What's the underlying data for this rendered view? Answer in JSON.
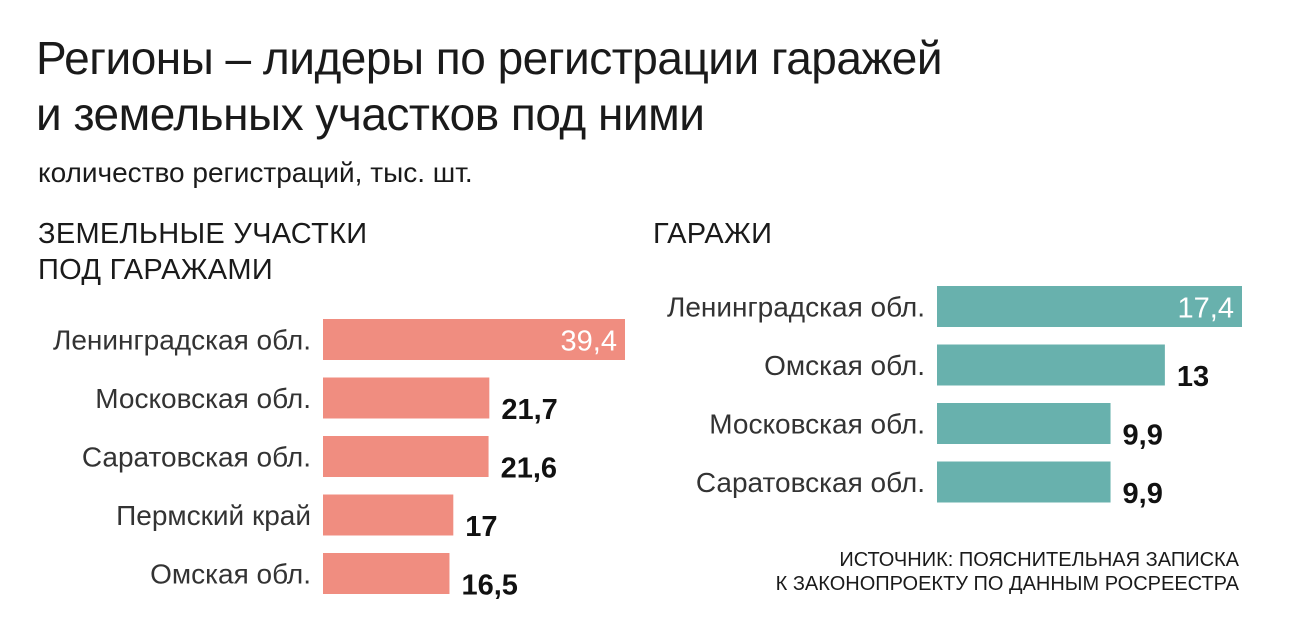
{
  "title_line1": "Регионы – лидеры по регистрации гаражей",
  "title_line2": "и земельных участков под ними",
  "subtitle": "количество регистраций, тыс. шт.",
  "colors": {
    "land_bar": "#f08d80",
    "garage_bar": "#68b1ad"
  },
  "chart_data": [
    {
      "type": "bar",
      "orientation": "horizontal",
      "title_line1": "ЗЕМЕЛЬНЫЕ УЧАСТКИ",
      "title_line2": "ПОД ГАРАЖАМИ",
      "categories": [
        "Ленинградская обл.",
        "Московская обл.",
        "Саратовская обл.",
        "Пермский край",
        "Омская обл."
      ],
      "values": [
        39.4,
        21.7,
        21.6,
        17,
        16.5
      ],
      "value_labels": [
        "39,4",
        "21,7",
        "21,6",
        "17",
        "16,5"
      ],
      "xlim": [
        0,
        39.4
      ],
      "grid": false,
      "color": "#f08d80"
    },
    {
      "type": "bar",
      "orientation": "horizontal",
      "title": "ГАРАЖИ",
      "categories": [
        "Ленинградская обл.",
        "Омская обл.",
        "Московская обл.",
        "Саратовская обл."
      ],
      "values": [
        17.4,
        13,
        9.9,
        9.9
      ],
      "value_labels": [
        "17,4",
        "13",
        "9,9",
        "9,9"
      ],
      "xlim": [
        0,
        17.4
      ],
      "grid": false,
      "color": "#68b1ad"
    }
  ],
  "source_line1": "ИСТОЧНИК: ПОЯСНИТЕЛЬНАЯ ЗАПИСКА",
  "source_line2": "К ЗАКОНОПРОЕКТУ ПО ДАННЫМ РОСРЕЕСТРА"
}
